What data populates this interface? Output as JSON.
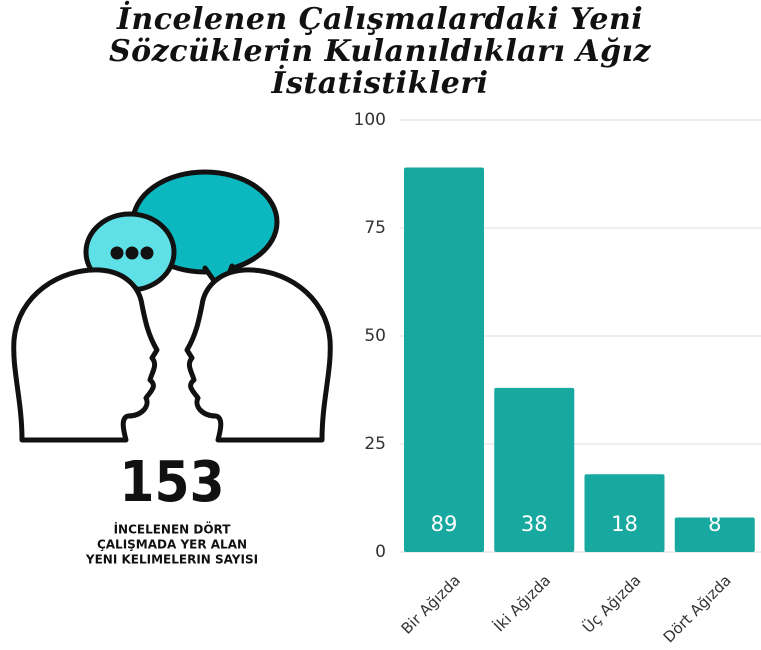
{
  "chart_data": {
    "type": "bar",
    "title": "İncelenen Çalışmalardaki Yeni Sözcüklerin Kulanıldıkları Ağız İstatistikleri",
    "categories": [
      "Bir Ağızda",
      "İki Ağızda",
      "Üç Ağızda",
      "Dört Ağızda"
    ],
    "values": [
      89,
      38,
      18,
      8
    ],
    "color": "#17a89f",
    "ylim": [
      0,
      100
    ],
    "yticks": [
      0,
      25,
      50,
      75,
      100
    ],
    "grid": true
  },
  "summary": {
    "number": "153",
    "caption_lines": [
      "İNCELENEN DÖRT",
      "ÇALIŞMADA YER ALAN",
      "YENI KELIMELERIN SAYISI"
    ]
  }
}
